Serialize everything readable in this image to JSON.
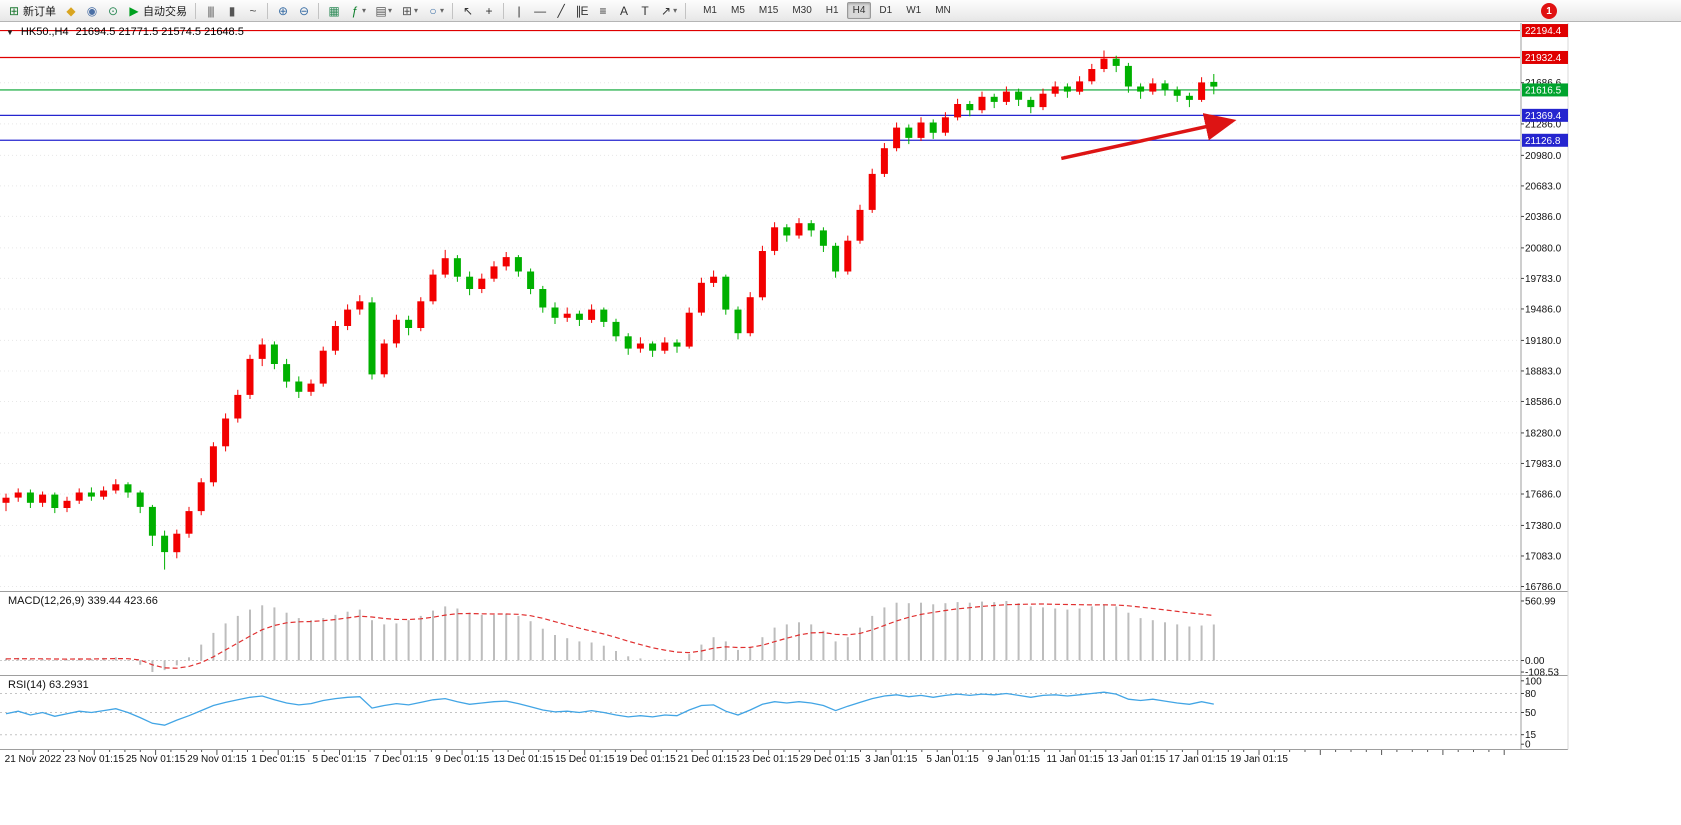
{
  "toolbar": {
    "notification_badge": "1",
    "timeframes": [
      "M1",
      "M5",
      "M15",
      "M30",
      "H1",
      "H4",
      "D1",
      "W1",
      "MN"
    ],
    "active_timeframe": "H4",
    "items": [
      {
        "kind": "button",
        "name": "new-order-button",
        "icon": "new-order-icon",
        "glyph": "⊞",
        "color": "#1f7a33",
        "label": "新订单"
      },
      {
        "kind": "icon",
        "name": "metaeditor-icon",
        "glyph": "◆",
        "color": "#d9a520"
      },
      {
        "kind": "icon",
        "name": "strategy-tester-icon",
        "glyph": "◉",
        "color": "#4a6fa5"
      },
      {
        "kind": "icon",
        "name": "market-watch-icon",
        "glyph": "⊙",
        "color": "#2d8a57"
      },
      {
        "kind": "button",
        "name": "autotrading-button",
        "icon": "autotrading-icon",
        "glyph": "▶",
        "color": "#00a020",
        "label": "自动交易"
      },
      {
        "kind": "sep"
      },
      {
        "kind": "icon",
        "name": "bar-chart-icon",
        "glyph": "|||",
        "color": "#555555"
      },
      {
        "kind": "icon",
        "name": "candlestick-chart-icon",
        "glyph": "▮",
        "color": "#555555"
      },
      {
        "kind": "icon",
        "name": "line-chart-icon",
        "glyph": "~",
        "color": "#555555"
      },
      {
        "kind": "sep"
      },
      {
        "kind": "icon",
        "name": "zoom-in-icon",
        "glyph": "⊕",
        "color": "#3a6ea5"
      },
      {
        "kind": "icon",
        "name": "zoom-out-icon",
        "glyph": "⊖",
        "color": "#3a6ea5"
      },
      {
        "kind": "sep"
      },
      {
        "kind": "icon",
        "name": "tile-windows-icon",
        "glyph": "▦",
        "color": "#2d8a57"
      },
      {
        "kind": "icon",
        "name": "indicators-button",
        "glyph": "ƒ",
        "color": "#0a7d28",
        "dropdown": true
      },
      {
        "kind": "icon",
        "name": "timeframes-menu-button",
        "glyph": "▤",
        "color": "#555555",
        "dropdown": true
      },
      {
        "kind": "icon",
        "name": "new-chart-button",
        "glyph": "⊞",
        "color": "#555555",
        "dropdown": true
      },
      {
        "kind": "icon",
        "name": "profiles-button",
        "glyph": "○",
        "color": "#3a6ea5",
        "dropdown": true
      },
      {
        "kind": "sep"
      },
      {
        "kind": "icon",
        "name": "cursor-icon",
        "glyph": "↖",
        "color": "#333333"
      },
      {
        "kind": "icon",
        "name": "crosshair-icon",
        "glyph": "+",
        "color": "#333333"
      },
      {
        "kind": "sep"
      },
      {
        "kind": "icon",
        "name": "vertical-line-icon",
        "glyph": "|",
        "color": "#333333"
      },
      {
        "kind": "icon",
        "name": "horizontal-line-icon",
        "glyph": "—",
        "color": "#333333"
      },
      {
        "kind": "icon",
        "name": "trendline-icon",
        "glyph": "╱",
        "color": "#333333"
      },
      {
        "kind": "icon",
        "name": "equidistant-channel-icon",
        "glyph": "∥E",
        "color": "#333333"
      },
      {
        "kind": "icon",
        "name": "fibonacci-icon",
        "glyph": "≡",
        "color": "#333333"
      },
      {
        "kind": "icon",
        "name": "text-icon",
        "glyph": "A",
        "color": "#333333"
      },
      {
        "kind": "icon",
        "name": "text-label-icon",
        "glyph": "T",
        "color": "#333333"
      },
      {
        "kind": "icon",
        "name": "arrows-button",
        "glyph": "↗",
        "color": "#333333",
        "dropdown": true
      },
      {
        "kind": "sep"
      },
      {
        "kind": "tf"
      }
    ]
  },
  "chart_data": {
    "type": "candlestick",
    "title": "HK50.,H4",
    "ohlc_display": "21694.5 21771.5 21574.5 21648.5",
    "last_ohlc": {
      "open": 21694.5,
      "high": 21771.5,
      "low": 21574.5,
      "close": 21648.5
    },
    "up_color": "#f20000",
    "down_color": "#00b000",
    "price_axis": {
      "min": 16752,
      "max": 22258,
      "plain_labels": [
        "21686.6",
        "21286.0",
        "20980.0",
        "20683.0",
        "20386.0",
        "20080.0",
        "19783.0",
        "19486.0",
        "19180.0",
        "18883.0",
        "18586.0",
        "18280.0",
        "17983.0",
        "17686.0",
        "17380.0",
        "17083.0",
        "16786.0"
      ],
      "badges": [
        {
          "text": "22194.4",
          "bg": "#df0000"
        },
        {
          "text": "21932.4",
          "bg": "#df0000"
        },
        {
          "text": "21616.5",
          "bg": "#00a32e"
        },
        {
          "text": "21369.4",
          "bg": "#2525cf"
        },
        {
          "text": "21126.8",
          "bg": "#2525cf"
        }
      ]
    },
    "horizontal_lines": [
      {
        "price": 22194.4,
        "color": "#df0000"
      },
      {
        "price": 21932.4,
        "color": "#df0000"
      },
      {
        "price": 21616.5,
        "color": "#00a32e"
      },
      {
        "price": 21369.4,
        "color": "#2525cf"
      },
      {
        "price": 21126.8,
        "color": "#2525cf"
      }
    ],
    "trend_arrow": {
      "i1": 86.5,
      "p1": 20950,
      "i2": 100.3,
      "p2": 21310,
      "color": "#dd1414"
    },
    "candles": [
      [
        17600,
        17690,
        17520,
        17650
      ],
      [
        17650,
        17740,
        17610,
        17700
      ],
      [
        17700,
        17730,
        17550,
        17600
      ],
      [
        17600,
        17710,
        17560,
        17680
      ],
      [
        17680,
        17700,
        17500,
        17550
      ],
      [
        17550,
        17660,
        17510,
        17620
      ],
      [
        17620,
        17740,
        17590,
        17700
      ],
      [
        17700,
        17750,
        17620,
        17660
      ],
      [
        17660,
        17760,
        17630,
        17720
      ],
      [
        17720,
        17830,
        17690,
        17780
      ],
      [
        17780,
        17800,
        17650,
        17700
      ],
      [
        17700,
        17720,
        17500,
        17560
      ],
      [
        17560,
        17580,
        17180,
        17280
      ],
      [
        17280,
        17330,
        16950,
        17120
      ],
      [
        17120,
        17340,
        17060,
        17300
      ],
      [
        17300,
        17560,
        17260,
        17520
      ],
      [
        17520,
        17840,
        17480,
        17800
      ],
      [
        17800,
        18190,
        17760,
        18150
      ],
      [
        18150,
        18470,
        18100,
        18420
      ],
      [
        18420,
        18700,
        18380,
        18650
      ],
      [
        18650,
        19040,
        18610,
        19000
      ],
      [
        19000,
        19200,
        18930,
        19140
      ],
      [
        19140,
        19170,
        18900,
        18950
      ],
      [
        18950,
        19000,
        18720,
        18780
      ],
      [
        18780,
        18830,
        18620,
        18680
      ],
      [
        18680,
        18800,
        18640,
        18760
      ],
      [
        18760,
        19120,
        18730,
        19080
      ],
      [
        19080,
        19370,
        19040,
        19320
      ],
      [
        19320,
        19530,
        19280,
        19480
      ],
      [
        19480,
        19620,
        19430,
        19560
      ],
      [
        19550,
        19600,
        18800,
        18850
      ],
      [
        18850,
        19190,
        18820,
        19150
      ],
      [
        19150,
        19430,
        19110,
        19380
      ],
      [
        19380,
        19420,
        19230,
        19300
      ],
      [
        19300,
        19600,
        19270,
        19560
      ],
      [
        19560,
        19870,
        19530,
        19820
      ],
      [
        19820,
        20060,
        19790,
        19980
      ],
      [
        19980,
        20010,
        19750,
        19800
      ],
      [
        19800,
        19850,
        19620,
        19680
      ],
      [
        19680,
        19830,
        19640,
        19780
      ],
      [
        19780,
        19950,
        19750,
        19900
      ],
      [
        19900,
        20040,
        19860,
        19990
      ],
      [
        19990,
        20010,
        19800,
        19850
      ],
      [
        19850,
        19880,
        19630,
        19680
      ],
      [
        19680,
        19710,
        19450,
        19500
      ],
      [
        19500,
        19550,
        19340,
        19400
      ],
      [
        19400,
        19500,
        19360,
        19440
      ],
      [
        19440,
        19470,
        19320,
        19380
      ],
      [
        19380,
        19530,
        19350,
        19480
      ],
      [
        19480,
        19500,
        19310,
        19360
      ],
      [
        19360,
        19390,
        19170,
        19220
      ],
      [
        19220,
        19250,
        19040,
        19100
      ],
      [
        19100,
        19210,
        19060,
        19150
      ],
      [
        19150,
        19170,
        19020,
        19080
      ],
      [
        19080,
        19210,
        19050,
        19160
      ],
      [
        19160,
        19190,
        19060,
        19120
      ],
      [
        19120,
        19500,
        19100,
        19450
      ],
      [
        19450,
        19790,
        19420,
        19740
      ],
      [
        19740,
        19860,
        19700,
        19800
      ],
      [
        19800,
        19820,
        19430,
        19480
      ],
      [
        19480,
        19510,
        19190,
        19250
      ],
      [
        19250,
        19650,
        19220,
        19600
      ],
      [
        19600,
        20100,
        19570,
        20050
      ],
      [
        20050,
        20330,
        20010,
        20280
      ],
      [
        20280,
        20310,
        20140,
        20200
      ],
      [
        20200,
        20370,
        20170,
        20320
      ],
      [
        20320,
        20350,
        20190,
        20250
      ],
      [
        20250,
        20280,
        20040,
        20100
      ],
      [
        20100,
        20130,
        19790,
        19850
      ],
      [
        19850,
        20200,
        19820,
        20150
      ],
      [
        20150,
        20500,
        20120,
        20450
      ],
      [
        20450,
        20850,
        20420,
        20800
      ],
      [
        20800,
        21100,
        20770,
        21050
      ],
      [
        21050,
        21300,
        21020,
        21250
      ],
      [
        21250,
        21280,
        21090,
        21150
      ],
      [
        21150,
        21350,
        21120,
        21300
      ],
      [
        21300,
        21330,
        21140,
        21200
      ],
      [
        21200,
        21400,
        21170,
        21350
      ],
      [
        21350,
        21530,
        21320,
        21480
      ],
      [
        21480,
        21510,
        21360,
        21420
      ],
      [
        21420,
        21600,
        21390,
        21550
      ],
      [
        21550,
        21580,
        21440,
        21500
      ],
      [
        21500,
        21650,
        21470,
        21600
      ],
      [
        21600,
        21630,
        21460,
        21520
      ],
      [
        21520,
        21550,
        21390,
        21450
      ],
      [
        21450,
        21630,
        21420,
        21580
      ],
      [
        21580,
        21700,
        21550,
        21650
      ],
      [
        21650,
        21680,
        21540,
        21600
      ],
      [
        21600,
        21750,
        21570,
        21700
      ],
      [
        21700,
        21870,
        21670,
        21820
      ],
      [
        21820,
        22000,
        21790,
        21920
      ],
      [
        21920,
        21950,
        21790,
        21850
      ],
      [
        21850,
        21880,
        21590,
        21650
      ],
      [
        21650,
        21680,
        21530,
        21600
      ],
      [
        21600,
        21730,
        21570,
        21680
      ],
      [
        21680,
        21710,
        21560,
        21620
      ],
      [
        21620,
        21650,
        21500,
        21560
      ],
      [
        21560,
        21590,
        21450,
        21520
      ],
      [
        21520,
        21740,
        21500,
        21690
      ],
      [
        21694.5,
        21771.5,
        21574.5,
        21648.5
      ]
    ],
    "macd_panel": {
      "label": "MACD(12,26,9) 339.44 423.66",
      "hist_color": "#bdbdbd",
      "signal_color": "#e03030",
      "scale_labels": [
        "560.99",
        "0.00",
        "-108.53"
      ],
      "range": {
        "min": -127,
        "max": 636
      },
      "histogram": [
        20,
        25,
        10,
        15,
        5,
        10,
        20,
        15,
        25,
        30,
        5,
        -40,
        -108.53,
        -90,
        -45,
        30,
        150,
        260,
        350,
        420,
        480,
        520,
        500,
        450,
        400,
        380,
        400,
        430,
        460,
        480,
        380,
        340,
        350,
        380,
        420,
        470,
        510,
        490,
        450,
        430,
        430,
        440,
        420,
        370,
        300,
        240,
        210,
        180,
        170,
        140,
        90,
        40,
        20,
        0,
        10,
        5,
        60,
        150,
        220,
        180,
        100,
        130,
        220,
        310,
        340,
        360,
        340,
        280,
        180,
        220,
        310,
        420,
        500,
        545,
        540,
        545,
        530,
        540,
        550,
        545,
        555,
        550,
        560.99,
        540,
        510,
        500,
        490,
        480,
        490,
        510,
        530,
        510,
        450,
        400,
        380,
        360,
        340,
        320,
        330,
        339.44
      ],
      "signal": [
        15,
        17,
        16,
        16,
        14,
        13,
        14,
        14,
        16,
        18,
        17,
        5,
        -40,
        -70,
        -72,
        -55,
        -20,
        35,
        100,
        165,
        230,
        290,
        330,
        355,
        365,
        368,
        375,
        386,
        401,
        417,
        410,
        396,
        387,
        386,
        393,
        408,
        428,
        441,
        443,
        440,
        438,
        438,
        435,
        422,
        398,
        366,
        335,
        304,
        277,
        250,
        218,
        182,
        150,
        120,
        98,
        79,
        75,
        90,
        116,
        129,
        123,
        124,
        144,
        177,
        210,
        240,
        260,
        264,
        247,
        242,
        255,
        288,
        331,
        373,
        407,
        434,
        453,
        471,
        487,
        498,
        510,
        518,
        526,
        529,
        531,
        532,
        530,
        528,
        526,
        524,
        525,
        523,
        515,
        503,
        490,
        477,
        463,
        449,
        436,
        423.66
      ]
    },
    "rsi_panel": {
      "label": "RSI(14) 63.2931",
      "line_color": "#42a5e5",
      "levels": [
        80,
        50,
        15
      ],
      "scale_labels": [
        "100",
        "80",
        "50",
        "15",
        "0"
      ],
      "range": {
        "min": -6,
        "max": 106
      },
      "values": [
        48,
        52,
        46,
        50,
        44,
        48,
        52,
        50,
        53,
        56,
        50,
        42,
        33,
        30,
        38,
        45,
        53,
        61,
        66,
        70,
        74,
        76,
        70,
        65,
        62,
        64,
        69,
        72,
        74,
        75,
        57,
        61,
        64,
        62,
        66,
        70,
        72,
        67,
        63,
        65,
        67,
        68,
        64,
        59,
        54,
        51,
        52,
        50,
        53,
        50,
        46,
        43,
        45,
        43,
        46,
        45,
        54,
        61,
        62,
        52,
        46,
        54,
        63,
        67,
        65,
        67,
        65,
        61,
        53,
        60,
        66,
        72,
        76,
        78,
        75,
        77,
        74,
        77,
        79,
        77,
        79,
        78,
        80,
        77,
        74,
        77,
        78,
        76,
        78,
        80,
        82,
        79,
        71,
        69,
        71,
        68,
        65,
        63,
        67,
        63.29
      ]
    },
    "time_axis": {
      "labels": [
        "21 Nov 2022",
        "23 Nov 01:15",
        "25 Nov 01:15",
        "29 Nov 01:15",
        "1 Dec 01:15",
        "5 Dec 01:15",
        "7 Dec 01:15",
        "9 Dec 01:15",
        "13 Dec 01:15",
        "15 Dec 01:15",
        "19 Dec 01:15",
        "21 Dec 01:15",
        "23 Dec 01:15",
        "29 Dec 01:15",
        "3 Jan 01:15",
        "5 Jan 01:15",
        "9 Jan 01:15",
        "11 Jan 01:15",
        "13 Jan 01:15",
        "17 Jan 01:15",
        "19 Jan 01:15"
      ]
    }
  }
}
